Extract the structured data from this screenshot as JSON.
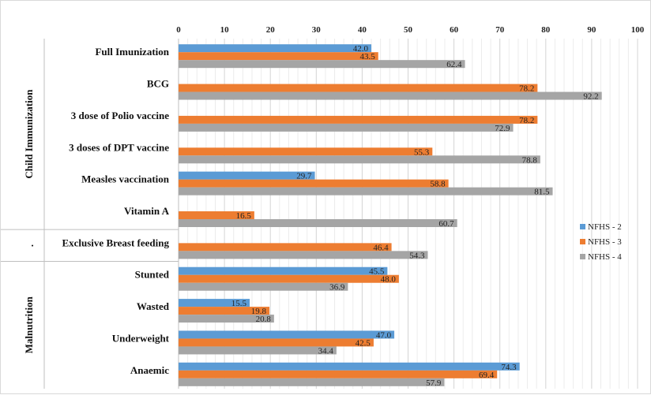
{
  "chart_data": {
    "type": "bar",
    "orientation": "horizontal",
    "title": "",
    "xlim": [
      0,
      100
    ],
    "x_ticks": [
      "0",
      "10",
      "20",
      "30",
      "40",
      "50",
      "60",
      "70",
      "80",
      "90",
      "100"
    ],
    "grid": true,
    "legend_position": "right",
    "groups": [
      {
        "label": "Child Immunization",
        "categories": [
          "Full Imunization",
          "BCG",
          "3 dose of Polio vaccine",
          "3 doses of DPT vaccine",
          "Measles vaccination",
          "Vitamin A"
        ]
      },
      {
        "label": "·",
        "categories": [
          "Exclusive Breast feeding"
        ]
      },
      {
        "label": "Malnutrition",
        "categories": [
          "Stunted",
          "Wasted",
          "Underweight",
          "Anaemic"
        ]
      }
    ],
    "categories": [
      "Full Imunization",
      "BCG",
      "3 dose of Polio vaccine",
      "3 doses of DPT vaccine",
      "Measles vaccination",
      "Vitamin A",
      "Exclusive Breast feeding",
      "Stunted",
      "Wasted",
      "Underweight",
      "Anaemic"
    ],
    "series": [
      {
        "name": "NFHS - 2",
        "color": "#5b9bd5",
        "values": [
          42.0,
          null,
          null,
          null,
          29.7,
          null,
          null,
          45.5,
          15.5,
          47.0,
          74.3
        ],
        "labels": [
          "42.0",
          "",
          "",
          "",
          "29.7",
          "",
          "",
          "45.5",
          "15.5",
          "47.0",
          "74.3"
        ]
      },
      {
        "name": "NFHS - 3",
        "color": "#ed7d31",
        "values": [
          43.5,
          78.2,
          78.2,
          55.3,
          58.8,
          16.5,
          46.4,
          48.0,
          19.8,
          42.5,
          69.4
        ],
        "labels": [
          "43.5",
          "78.2",
          "78.2",
          "55.3",
          "58.8",
          "16.5",
          "46.4",
          "48.0",
          "19.8",
          "42.5",
          "69.4"
        ]
      },
      {
        "name": "NFHS - 4",
        "color": "#a5a5a5",
        "values": [
          62.4,
          92.2,
          72.9,
          78.8,
          81.5,
          60.7,
          54.3,
          36.9,
          20.8,
          34.4,
          57.9
        ],
        "labels": [
          "62.4",
          "92.2",
          "72.9",
          "78.8",
          "81.5",
          "60.7",
          "54.3",
          "36.9",
          "20.8",
          "34.4",
          "57.9"
        ]
      }
    ]
  }
}
